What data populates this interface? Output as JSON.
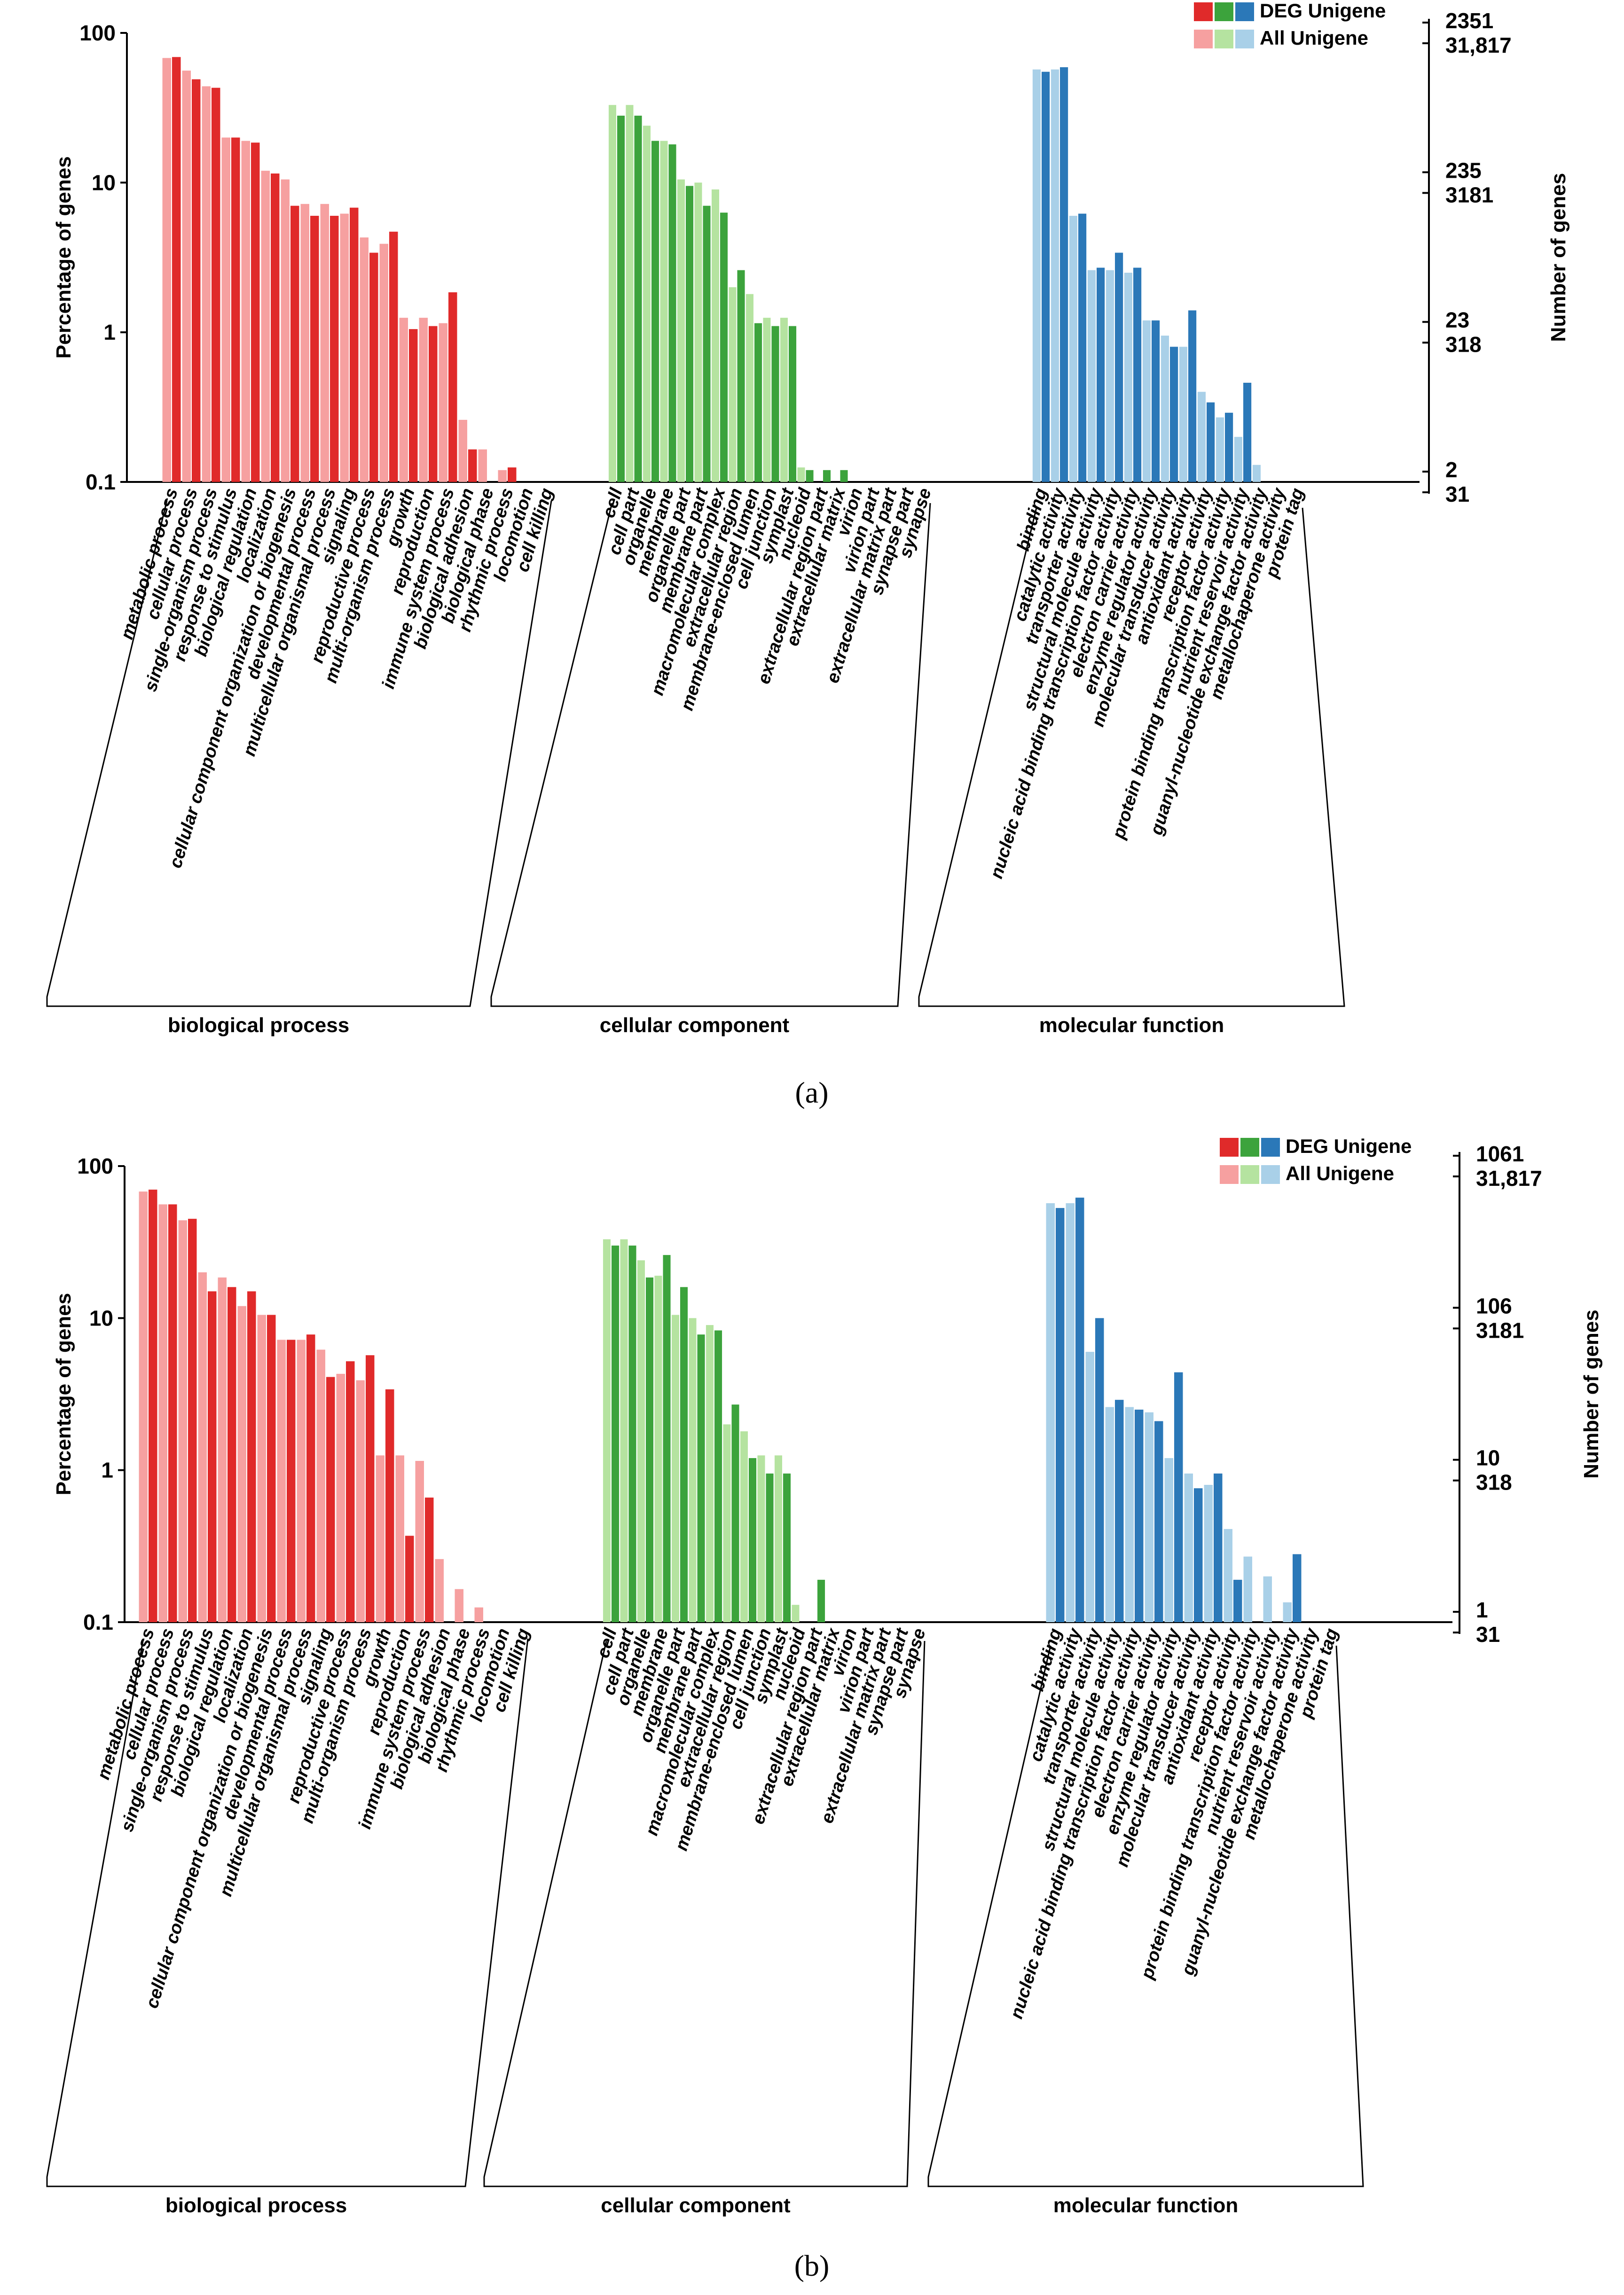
{
  "colors": {
    "bp_deg": "#e02a2a",
    "bp_all": "#f6a0a0",
    "cc_deg": "#3ca33c",
    "cc_all": "#b5e3a0",
    "mf_deg": "#2b78b8",
    "mf_all": "#a9d0e8"
  },
  "chart_data": [
    {
      "type": "bar",
      "panel": "(a)",
      "yscale": "log",
      "ylim": [
        0.1,
        100
      ],
      "ylabel": "Percentage of genes",
      "y2label": "Number of genes",
      "yticks": [
        "100",
        "10",
        "1",
        "0.1"
      ],
      "right_ticks": [
        {
          "deg": "2351",
          "all": "31,817"
        },
        {
          "deg": "235",
          "all": "3181"
        },
        {
          "deg": "23",
          "all": "318"
        },
        {
          "deg": "2",
          "all": "31"
        }
      ],
      "legend": [
        "DEG Unigene",
        "All Unigene"
      ],
      "groups": [
        {
          "name": "biological process",
          "key": "bp",
          "categories": [
            "metabolic process",
            "cellular process",
            "single-organism process",
            "response to stimulus",
            "biological regulation",
            "localization",
            "cellular component organization or biogenesis",
            "developmental process",
            "multicellular organismal process",
            "signaling",
            "reproductive process",
            "multi-organism process",
            "growth",
            "reproduction",
            "immune system process",
            "biological adhesion",
            "biological phase",
            "rhythmic process",
            "locomotion",
            "cell killing"
          ],
          "all": [
            68,
            56,
            44,
            20,
            19,
            12,
            10.5,
            7.2,
            7.2,
            6.2,
            4.3,
            3.9,
            1.25,
            1.25,
            1.15,
            0.26,
            0.165,
            0.12,
            0,
            0
          ],
          "deg": [
            69,
            49,
            43,
            20,
            18.5,
            11.5,
            7,
            6,
            6,
            6.8,
            3.4,
            4.7,
            1.05,
            1.1,
            1.85,
            0.165,
            0,
            0.125,
            0,
            0
          ]
        },
        {
          "name": "cellular component",
          "key": "cc",
          "categories": [
            "cell",
            "cell part",
            "organelle",
            "membrane",
            "organelle part",
            "membrane part",
            "macromolecular complex",
            "extracellular region",
            "membrane-enclosed lumen",
            "cell junction",
            "symplast",
            "nucleoid",
            "extracellular region part",
            "extracellular matrix",
            "virion",
            "virion part",
            "extracellular matrix part",
            "synapse part",
            "synapse"
          ],
          "all": [
            33,
            33,
            24,
            19,
            10.5,
            10,
            9,
            2,
            1.8,
            1.25,
            1.25,
            0.125,
            0,
            0,
            0,
            0,
            0,
            0,
            0
          ],
          "deg": [
            28,
            28,
            19,
            18,
            9.5,
            7,
            6.3,
            2.6,
            1.15,
            1.1,
            1.1,
            0.12,
            0.12,
            0.12,
            0,
            0,
            0,
            0,
            0
          ]
        },
        {
          "name": "molecular function",
          "key": "mf",
          "categories": [
            "binding",
            "catalytic activity",
            "transporter activity",
            "structural molecule activity",
            "nucleic acid binding transcription factor activity",
            "electron carrier activity",
            "enzyme regulator activity",
            "molecular transducer activity",
            "antioxidant activity",
            "receptor activity",
            "protein binding transcription factor activity",
            "nutrient reservoir activity",
            "guanyl-nucleotide exchange factor activity",
            "metallochaperone activity",
            "protein tag"
          ],
          "all": [
            57,
            57,
            6,
            2.6,
            2.6,
            2.5,
            1.2,
            0.95,
            0.8,
            0.4,
            0.27,
            0.2,
            0.13,
            0,
            0
          ],
          "deg": [
            55,
            59,
            6.2,
            2.7,
            3.4,
            2.7,
            1.2,
            0.8,
            1.4,
            0.34,
            0.29,
            0.46,
            0,
            0,
            0
          ]
        }
      ]
    },
    {
      "type": "bar",
      "panel": "(b)",
      "yscale": "log",
      "ylim": [
        0.1,
        100
      ],
      "ylabel": "Percentage of genes",
      "y2label": "Number of genes",
      "yticks": [
        "100",
        "10",
        "1",
        "0.1"
      ],
      "right_ticks": [
        {
          "deg": "1061",
          "all": "31,817"
        },
        {
          "deg": "106",
          "all": "3181"
        },
        {
          "deg": "10",
          "all": "318"
        },
        {
          "deg": "1",
          "all": "31"
        }
      ],
      "legend": [
        "DEG Unigene",
        "All Unigene"
      ],
      "groups": [
        {
          "name": "biological process",
          "key": "bp",
          "categories": [
            "metabolic process",
            "cellular process",
            "single-organism process",
            "response to stimulus",
            "biological regulation",
            "localization",
            "cellular component organization or biogenesis",
            "developmental process",
            "multicellular organismal process",
            "signaling",
            "reproductive process",
            "multi-organism process",
            "growth",
            "reproduction",
            "immune system process",
            "biological adhesion",
            "biological phase",
            "rhythmic process",
            "locomotion",
            "cell killing"
          ],
          "all": [
            68,
            56,
            44,
            20,
            18.5,
            12,
            10.5,
            7.2,
            7.2,
            6.2,
            4.3,
            3.9,
            1.25,
            1.25,
            1.15,
            0.26,
            0.165,
            0.125,
            0,
            0
          ],
          "deg": [
            70,
            56,
            45,
            15,
            16,
            15,
            10.5,
            7.2,
            7.8,
            4.1,
            5.2,
            5.7,
            3.4,
            0.37,
            0.66,
            0,
            0,
            0,
            0,
            0
          ]
        },
        {
          "name": "cellular component",
          "key": "cc",
          "categories": [
            "cell",
            "cell part",
            "organelle",
            "membrane",
            "organelle part",
            "membrane part",
            "macromolecular complex",
            "extracellular region",
            "membrane-enclosed lumen",
            "cell junction",
            "symplast",
            "nucleoid",
            "extracellular region part",
            "extracellular matrix",
            "virion",
            "virion part",
            "extracellular matrix part",
            "synapse part",
            "synapse"
          ],
          "all": [
            33,
            33,
            24,
            19,
            10.5,
            10,
            9,
            2,
            1.8,
            1.25,
            1.25,
            0.13,
            0,
            0,
            0,
            0,
            0,
            0,
            0
          ],
          "deg": [
            30,
            30,
            18.5,
            26,
            16,
            7.8,
            8.3,
            2.7,
            1.2,
            0.95,
            0.95,
            0,
            0.19,
            0,
            0,
            0,
            0,
            0,
            0
          ]
        },
        {
          "name": "molecular function",
          "key": "mf",
          "categories": [
            "binding",
            "catalytic activity",
            "transporter activity",
            "structural molecule activity",
            "nucleic acid binding transcription factor activity",
            "electron carrier activity",
            "enzyme regulator activity",
            "molecular transducer activity",
            "antioxidant activity",
            "receptor activity",
            "protein binding transcription factor activity",
            "nutrient reservoir activity",
            "guanyl-nucleotide exchange factor activity",
            "metallochaperone activity",
            "protein tag"
          ],
          "all": [
            57,
            57,
            6,
            2.6,
            2.6,
            2.4,
            1.2,
            0.95,
            0.8,
            0.41,
            0.27,
            0.2,
            0.135,
            0,
            0
          ],
          "deg": [
            53,
            62,
            10,
            2.9,
            2.5,
            2.1,
            4.4,
            0.76,
            0.95,
            0.19,
            0,
            0,
            0.28,
            0,
            0
          ]
        }
      ]
    }
  ]
}
